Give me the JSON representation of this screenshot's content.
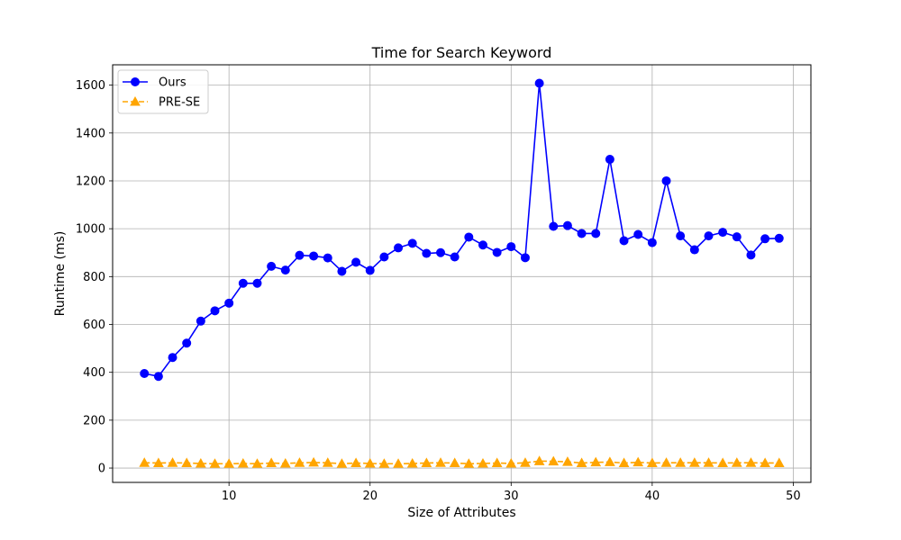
{
  "chart_data": {
    "type": "line",
    "title": "Time for Search Keyword",
    "xlabel": "Size of Attributes",
    "ylabel": "Runtime (ms)",
    "xlim": [
      1.75,
      51.25
    ],
    "ylim": [
      -60,
      1685
    ],
    "xticks": [
      10,
      20,
      30,
      40,
      50
    ],
    "yticks": [
      0,
      200,
      400,
      600,
      800,
      1000,
      1200,
      1400,
      1600
    ],
    "grid": true,
    "legend_position": "top-left",
    "x": [
      4,
      5,
      6,
      7,
      8,
      9,
      10,
      11,
      12,
      13,
      14,
      15,
      16,
      17,
      18,
      19,
      20,
      21,
      22,
      23,
      24,
      25,
      26,
      27,
      28,
      29,
      30,
      31,
      32,
      33,
      34,
      35,
      36,
      37,
      38,
      39,
      40,
      41,
      42,
      43,
      44,
      45,
      46,
      47,
      48,
      49
    ],
    "series": [
      {
        "name": "Ours",
        "color": "#0000ff",
        "marker": "circle",
        "linestyle": "solid",
        "values": [
          395,
          383,
          462,
          522,
          614,
          657,
          689,
          772,
          772,
          843,
          827,
          889,
          886,
          878,
          822,
          860,
          826,
          882,
          920,
          939,
          897,
          900,
          882,
          965,
          932,
          901,
          925,
          879,
          1608,
          1010,
          1013,
          980,
          980,
          1290,
          950,
          976,
          942,
          1200,
          970,
          912,
          970,
          985,
          966,
          890,
          958,
          960
        ]
      },
      {
        "name": "PRE-SE",
        "color": "#ffa500",
        "marker": "triangle",
        "linestyle": "dashed",
        "values": [
          22,
          21,
          22,
          21,
          19,
          18,
          18,
          19,
          18,
          21,
          19,
          22,
          23,
          22,
          18,
          21,
          19,
          18,
          18,
          19,
          21,
          22,
          21,
          18,
          19,
          21,
          19,
          22,
          29,
          28,
          26,
          21,
          24,
          25,
          21,
          24,
          21,
          22,
          22,
          22,
          22,
          21,
          22,
          22,
          21,
          21
        ]
      }
    ]
  }
}
